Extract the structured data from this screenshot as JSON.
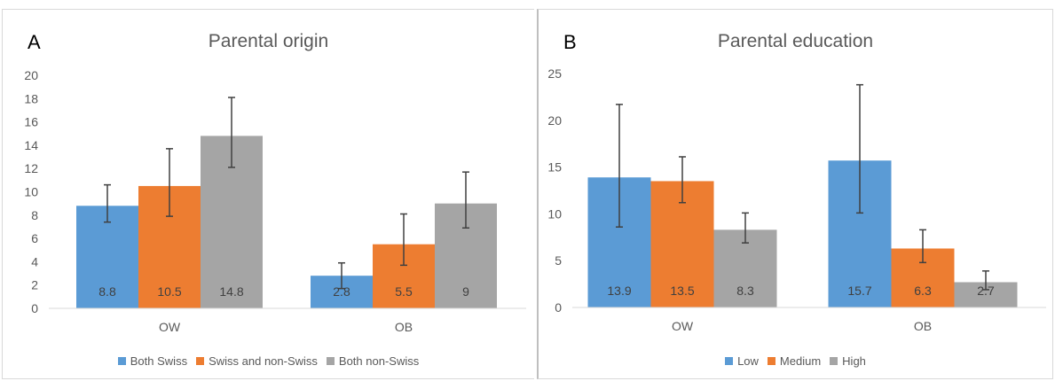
{
  "chart_data": [
    {
      "type": "bar",
      "panel_label": "A",
      "title": "Parental origin",
      "categories": [
        "OW",
        "OB"
      ],
      "ylim": [
        0,
        20
      ],
      "yticks": [
        0,
        2,
        4,
        6,
        8,
        10,
        12,
        14,
        16,
        18,
        20
      ],
      "series": [
        {
          "name": "Both Swiss",
          "color": "#5b9bd5",
          "values": [
            8.8,
            2.8
          ],
          "labels": [
            "8.8",
            "2.8"
          ],
          "err_low": [
            7.4,
            1.7
          ],
          "err_high": [
            10.6,
            3.9
          ]
        },
        {
          "name": "Swiss and non-Swiss",
          "color": "#ed7d31",
          "values": [
            10.5,
            5.5
          ],
          "labels": [
            "10.5",
            "5.5"
          ],
          "err_low": [
            7.9,
            3.7
          ],
          "err_high": [
            13.7,
            8.1
          ]
        },
        {
          "name": "Both non-Swiss",
          "color": "#a5a5a5",
          "values": [
            14.8,
            9
          ],
          "labels": [
            "14.8",
            "9"
          ],
          "err_low": [
            12.1,
            6.9
          ],
          "err_high": [
            18.1,
            11.7
          ]
        }
      ],
      "legend_position": "bottom",
      "grid": false
    },
    {
      "type": "bar",
      "panel_label": "B",
      "title": "Parental education",
      "categories": [
        "OW",
        "OB"
      ],
      "ylim": [
        0,
        25
      ],
      "yticks": [
        0,
        5,
        10,
        15,
        20,
        25
      ],
      "series": [
        {
          "name": "Low",
          "color": "#5b9bd5",
          "values": [
            13.9,
            15.7
          ],
          "labels": [
            "13.9",
            "15.7"
          ],
          "err_low": [
            8.6,
            10.1
          ],
          "err_high": [
            21.7,
            23.8
          ]
        },
        {
          "name": "Medium",
          "color": "#ed7d31",
          "values": [
            13.5,
            6.3
          ],
          "labels": [
            "13.5",
            "6.3"
          ],
          "err_low": [
            11.2,
            4.8
          ],
          "err_high": [
            16.1,
            8.3
          ]
        },
        {
          "name": "High",
          "color": "#a5a5a5",
          "values": [
            8.3,
            2.7
          ],
          "labels": [
            "8.3",
            "2.7"
          ],
          "err_low": [
            6.9,
            1.9
          ],
          "err_high": [
            10.1,
            3.9
          ]
        }
      ],
      "legend_position": "bottom",
      "grid": false
    }
  ]
}
